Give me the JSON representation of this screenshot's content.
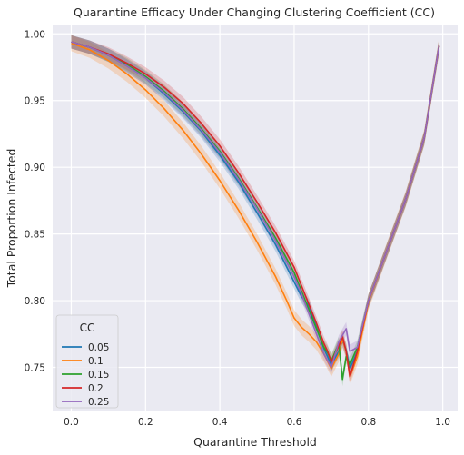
{
  "chart_data": {
    "type": "line",
    "title": "Quarantine Efficacy Under Changing Clustering Coefficient (CC)",
    "xlabel": "Quarantine Threshold",
    "ylabel": "Total Proportion Infected",
    "xlim": [
      -0.05,
      1.04
    ],
    "ylim": [
      0.717,
      1.007
    ],
    "xticks": [
      0.0,
      0.2,
      0.4,
      0.6,
      0.8,
      1.0
    ],
    "xtick_labels": [
      "0.0",
      "0.2",
      "0.4",
      "0.6",
      "0.8",
      "1.0"
    ],
    "yticks": [
      0.75,
      0.8,
      0.85,
      0.9,
      0.95,
      1.0
    ],
    "ytick_labels": [
      "0.75",
      "0.80",
      "0.85",
      "0.90",
      "0.95",
      "1.00"
    ],
    "grid": true,
    "background": "#eaeaf2",
    "legend": {
      "title": "CC",
      "placement": "lower-left"
    },
    "series": [
      {
        "name": "0.05",
        "color": "#1f77b4",
        "points": [
          [
            0.0,
            0.994
          ],
          [
            0.05,
            0.99
          ],
          [
            0.1,
            0.984
          ],
          [
            0.15,
            0.976
          ],
          [
            0.2,
            0.967
          ],
          [
            0.25,
            0.955
          ],
          [
            0.3,
            0.942
          ],
          [
            0.35,
            0.927
          ],
          [
            0.4,
            0.909
          ],
          [
            0.45,
            0.889
          ],
          [
            0.5,
            0.866
          ],
          [
            0.55,
            0.842
          ],
          [
            0.6,
            0.814
          ],
          [
            0.62,
            0.803
          ],
          [
            0.64,
            0.796
          ],
          [
            0.66,
            0.78
          ],
          [
            0.68,
            0.764
          ],
          [
            0.69,
            0.758
          ],
          [
            0.7,
            0.752
          ],
          [
            0.72,
            0.762
          ],
          [
            0.73,
            0.77
          ],
          [
            0.74,
            0.763
          ],
          [
            0.75,
            0.749
          ],
          [
            0.77,
            0.762
          ],
          [
            0.8,
            0.8
          ],
          [
            0.85,
            0.838
          ],
          [
            0.9,
            0.876
          ],
          [
            0.95,
            0.922
          ],
          [
            0.99,
            0.991
          ]
        ],
        "band": 0.005
      },
      {
        "name": "0.1",
        "color": "#ff7f0e",
        "points": [
          [
            0.0,
            0.993
          ],
          [
            0.05,
            0.988
          ],
          [
            0.1,
            0.98
          ],
          [
            0.15,
            0.97
          ],
          [
            0.2,
            0.958
          ],
          [
            0.25,
            0.944
          ],
          [
            0.3,
            0.928
          ],
          [
            0.35,
            0.91
          ],
          [
            0.4,
            0.89
          ],
          [
            0.45,
            0.868
          ],
          [
            0.5,
            0.844
          ],
          [
            0.55,
            0.818
          ],
          [
            0.58,
            0.8
          ],
          [
            0.6,
            0.787
          ],
          [
            0.62,
            0.78
          ],
          [
            0.64,
            0.775
          ],
          [
            0.66,
            0.769
          ],
          [
            0.68,
            0.76
          ],
          [
            0.7,
            0.749
          ],
          [
            0.72,
            0.76
          ],
          [
            0.73,
            0.771
          ],
          [
            0.74,
            0.762
          ],
          [
            0.75,
            0.743
          ],
          [
            0.77,
            0.758
          ],
          [
            0.8,
            0.799
          ],
          [
            0.85,
            0.838
          ],
          [
            0.9,
            0.876
          ],
          [
            0.95,
            0.922
          ],
          [
            0.99,
            0.991
          ]
        ],
        "band": 0.006
      },
      {
        "name": "0.15",
        "color": "#2ca02c",
        "points": [
          [
            0.0,
            0.994
          ],
          [
            0.05,
            0.99
          ],
          [
            0.1,
            0.984
          ],
          [
            0.15,
            0.977
          ],
          [
            0.2,
            0.968
          ],
          [
            0.25,
            0.957
          ],
          [
            0.3,
            0.944
          ],
          [
            0.35,
            0.929
          ],
          [
            0.4,
            0.912
          ],
          [
            0.45,
            0.892
          ],
          [
            0.5,
            0.87
          ],
          [
            0.55,
            0.847
          ],
          [
            0.6,
            0.821
          ],
          [
            0.62,
            0.807
          ],
          [
            0.64,
            0.793
          ],
          [
            0.66,
            0.779
          ],
          [
            0.68,
            0.765
          ],
          [
            0.69,
            0.761
          ],
          [
            0.7,
            0.755
          ],
          [
            0.72,
            0.768
          ],
          [
            0.73,
            0.741
          ],
          [
            0.74,
            0.758
          ],
          [
            0.75,
            0.752
          ],
          [
            0.77,
            0.765
          ],
          [
            0.8,
            0.8
          ],
          [
            0.85,
            0.838
          ],
          [
            0.9,
            0.876
          ],
          [
            0.95,
            0.922
          ],
          [
            0.99,
            0.991
          ]
        ],
        "band": 0.005
      },
      {
        "name": "0.2",
        "color": "#d62728",
        "points": [
          [
            0.0,
            0.994
          ],
          [
            0.05,
            0.99
          ],
          [
            0.1,
            0.985
          ],
          [
            0.15,
            0.978
          ],
          [
            0.2,
            0.97
          ],
          [
            0.25,
            0.96
          ],
          [
            0.3,
            0.948
          ],
          [
            0.35,
            0.933
          ],
          [
            0.4,
            0.916
          ],
          [
            0.45,
            0.896
          ],
          [
            0.5,
            0.874
          ],
          [
            0.55,
            0.851
          ],
          [
            0.6,
            0.825
          ],
          [
            0.62,
            0.811
          ],
          [
            0.64,
            0.797
          ],
          [
            0.66,
            0.783
          ],
          [
            0.68,
            0.768
          ],
          [
            0.69,
            0.762
          ],
          [
            0.7,
            0.754
          ],
          [
            0.72,
            0.766
          ],
          [
            0.73,
            0.773
          ],
          [
            0.74,
            0.762
          ],
          [
            0.75,
            0.743
          ],
          [
            0.77,
            0.762
          ],
          [
            0.8,
            0.8
          ],
          [
            0.85,
            0.838
          ],
          [
            0.9,
            0.876
          ],
          [
            0.95,
            0.922
          ],
          [
            0.99,
            0.991
          ]
        ],
        "band": 0.005
      },
      {
        "name": "0.25",
        "color": "#9467bd",
        "points": [
          [
            0.0,
            0.994
          ],
          [
            0.05,
            0.99
          ],
          [
            0.1,
            0.984
          ],
          [
            0.15,
            0.976
          ],
          [
            0.2,
            0.967
          ],
          [
            0.25,
            0.956
          ],
          [
            0.3,
            0.943
          ],
          [
            0.35,
            0.928
          ],
          [
            0.4,
            0.911
          ],
          [
            0.45,
            0.891
          ],
          [
            0.5,
            0.869
          ],
          [
            0.55,
            0.845
          ],
          [
            0.6,
            0.818
          ],
          [
            0.62,
            0.805
          ],
          [
            0.64,
            0.79
          ],
          [
            0.66,
            0.775
          ],
          [
            0.68,
            0.76
          ],
          [
            0.69,
            0.755
          ],
          [
            0.7,
            0.75
          ],
          [
            0.72,
            0.769
          ],
          [
            0.73,
            0.774
          ],
          [
            0.74,
            0.779
          ],
          [
            0.75,
            0.762
          ],
          [
            0.77,
            0.765
          ],
          [
            0.8,
            0.8
          ],
          [
            0.85,
            0.838
          ],
          [
            0.9,
            0.876
          ],
          [
            0.95,
            0.922
          ],
          [
            0.99,
            0.991
          ]
        ],
        "band": 0.005
      }
    ]
  }
}
